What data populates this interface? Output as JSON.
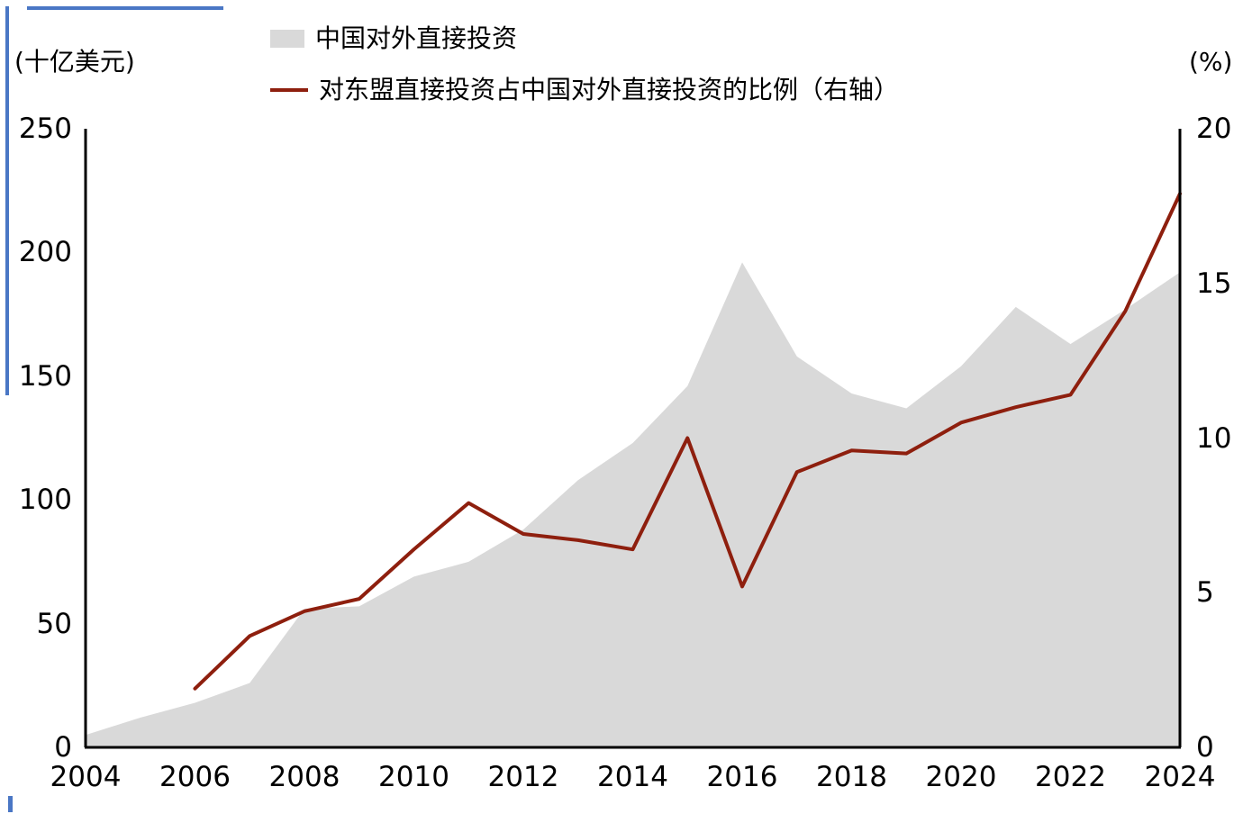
{
  "page": {
    "background": "#ffffff"
  },
  "decor": {
    "blue": "#4a77c5"
  },
  "chart_data": {
    "type": "combo",
    "title": "",
    "x_range": [
      2004,
      2024
    ],
    "x_ticks": [
      "2004",
      "2006",
      "2008",
      "2010",
      "2012",
      "2014",
      "2016",
      "2018",
      "2020",
      "2022",
      "2024"
    ],
    "left_axis": {
      "label": "(十亿美元)",
      "min": 0,
      "max": 250,
      "ticks": [
        0,
        50,
        100,
        150,
        200,
        250
      ]
    },
    "right_axis": {
      "label": "(%)",
      "min": 0,
      "max": 20,
      "ticks": [
        0,
        5,
        10,
        15,
        20
      ]
    },
    "grid": false,
    "legend_position": "top",
    "series": [
      {
        "name": "中国对外直接投资",
        "type": "area",
        "axis": "left",
        "color": "#d9d9d9",
        "x": [
          2004,
          2005,
          2006,
          2007,
          2008,
          2009,
          2010,
          2011,
          2012,
          2013,
          2014,
          2015,
          2016,
          2017,
          2018,
          2019,
          2020,
          2021,
          2022,
          2023,
          2024
        ],
        "values": [
          5,
          12,
          18,
          26,
          56,
          57,
          69,
          75,
          88,
          108,
          123,
          146,
          196,
          158,
          143,
          137,
          154,
          178,
          163,
          177,
          192
        ]
      },
      {
        "name": "对东盟直接投资占中国对外直接投资的比例（右轴）",
        "type": "line",
        "axis": "right",
        "color": "#8e1f0e",
        "x": [
          2006,
          2007,
          2008,
          2009,
          2010,
          2011,
          2012,
          2013,
          2014,
          2015,
          2016,
          2017,
          2018,
          2019,
          2020,
          2021,
          2022,
          2023,
          2024
        ],
        "values": [
          1.9,
          3.6,
          4.4,
          4.8,
          6.4,
          7.9,
          6.9,
          6.7,
          6.4,
          10.0,
          5.2,
          8.9,
          9.6,
          9.5,
          10.5,
          11.0,
          11.4,
          14.1,
          17.9
        ]
      }
    ]
  }
}
